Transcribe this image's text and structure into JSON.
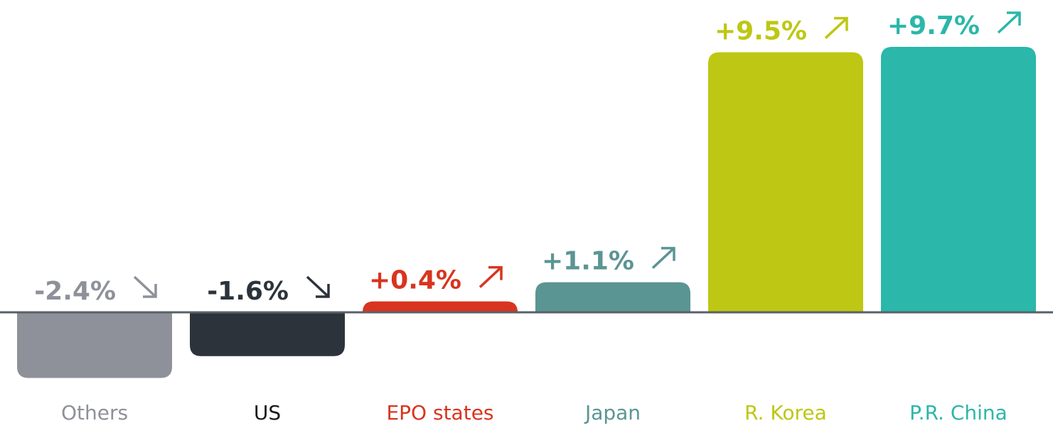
{
  "chart_data": {
    "type": "bar",
    "categories": [
      "Others",
      "US",
      "EPO states",
      "Japan",
      "R. Korea",
      "P.R. China"
    ],
    "values": [
      -2.4,
      -1.6,
      0.4,
      1.1,
      9.5,
      9.7
    ],
    "value_labels": [
      "-2.4%",
      "-1.6%",
      "+0.4%",
      "+1.1%",
      "+9.5%",
      "+9.7%"
    ],
    "colors": [
      "#8e9199",
      "#2d333b",
      "#d9341f",
      "#5b9593",
      "#bec713",
      "#2bb7aa"
    ],
    "label_colors": [
      "#8e9199",
      "#1a1a1a",
      "#d9341f",
      "#5b9593",
      "#bec713",
      "#2bb7aa"
    ],
    "ylim": [
      -3,
      11
    ]
  }
}
